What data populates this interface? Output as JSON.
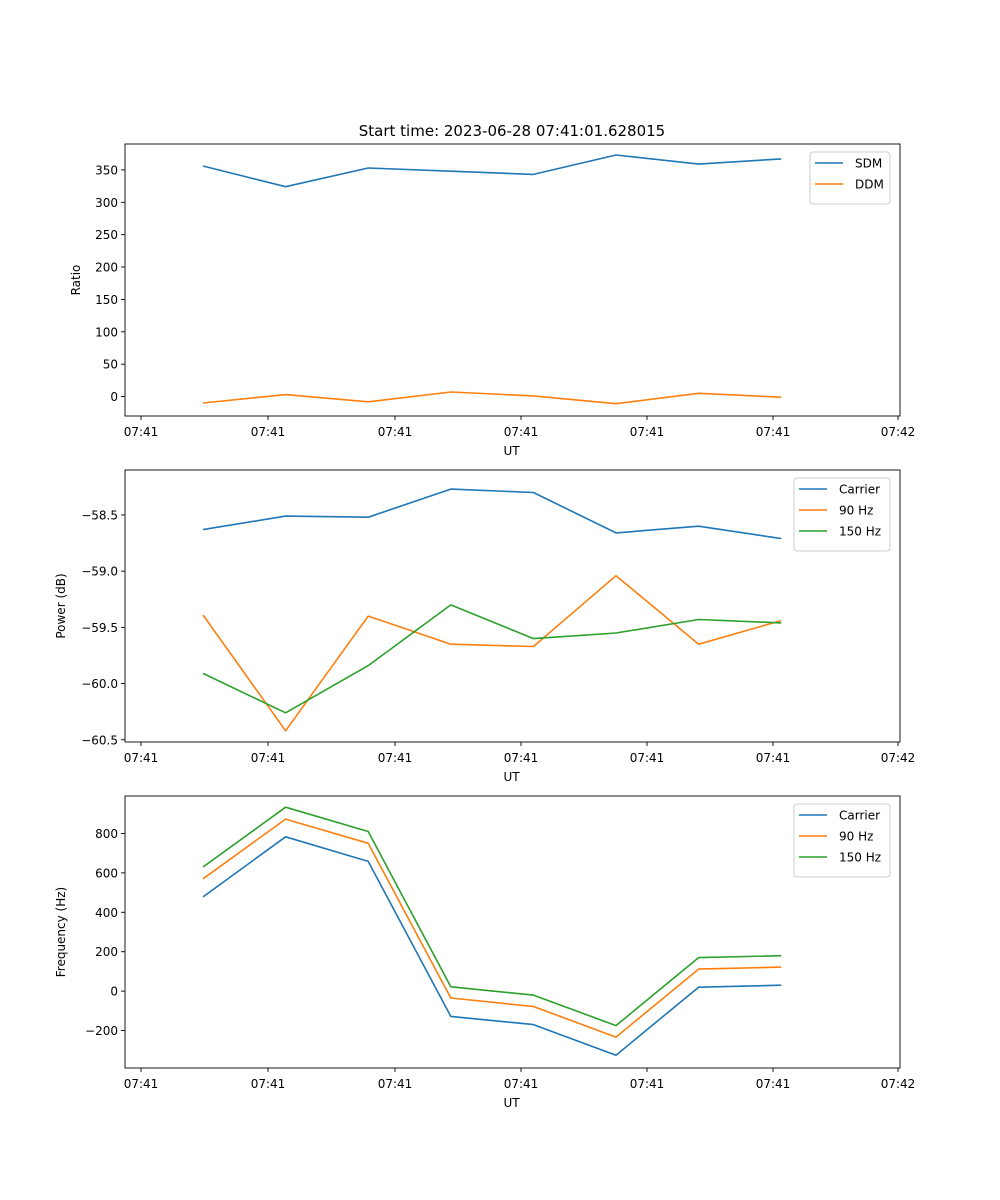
{
  "figure": {
    "title": "Start time: 2023-06-28 07:41:01.628015"
  },
  "chart_data": [
    {
      "type": "line",
      "xlabel": "UT",
      "ylabel": "Ratio",
      "x_tick_labels": [
        "07:41",
        "07:41",
        "07:41",
        "07:41",
        "07:41",
        "07:41",
        "07:42"
      ],
      "ylim": [
        -30,
        390
      ],
      "yticks": [
        0,
        50,
        100,
        150,
        200,
        250,
        300,
        350
      ],
      "legend_position": "top-right",
      "grid": false,
      "series": [
        {
          "name": "SDM",
          "color": "#1f77b4",
          "values": [
            356,
            324,
            353,
            348,
            343,
            373,
            359,
            367
          ]
        },
        {
          "name": "DDM",
          "color": "#ff7f0e",
          "values": [
            -10,
            3,
            -8,
            7,
            1,
            -11,
            5,
            -1
          ]
        }
      ]
    },
    {
      "type": "line",
      "xlabel": "UT",
      "ylabel": "Power (dB)",
      "x_tick_labels": [
        "07:41",
        "07:41",
        "07:41",
        "07:41",
        "07:41",
        "07:41",
        "07:42"
      ],
      "ylim": [
        -60.52,
        -58.1
      ],
      "yticks": [
        -58.5,
        -59.0,
        -59.5,
        -60.0,
        -60.5
      ],
      "ytick_labels": [
        "−58.5",
        "−59.0",
        "−59.5",
        "−60.0",
        "−60.5"
      ],
      "legend_position": "top-right",
      "grid": false,
      "series": [
        {
          "name": "Carrier",
          "color": "#1f77b4",
          "values": [
            -58.63,
            -58.51,
            -58.52,
            -58.27,
            -58.3,
            -58.66,
            -58.6,
            -58.71
          ]
        },
        {
          "name": "90 Hz",
          "color": "#ff7f0e",
          "values": [
            -59.39,
            -60.42,
            -59.4,
            -59.65,
            -59.67,
            -59.04,
            -59.65,
            -59.44
          ]
        },
        {
          "name": "150 Hz",
          "color": "#2ca02c",
          "values": [
            -59.91,
            -60.26,
            -59.84,
            -59.3,
            -59.6,
            -59.55,
            -59.43,
            -59.46
          ]
        }
      ]
    },
    {
      "type": "line",
      "xlabel": "UT",
      "ylabel": "Frequency (Hz)",
      "x_tick_labels": [
        "07:41",
        "07:41",
        "07:41",
        "07:41",
        "07:41",
        "07:41",
        "07:42"
      ],
      "ylim": [
        -390,
        990
      ],
      "yticks": [
        800,
        600,
        400,
        200,
        0,
        -200
      ],
      "ytick_labels": [
        "800",
        "600",
        "400",
        "200",
        "0",
        "−200"
      ],
      "legend_position": "top-right",
      "grid": false,
      "series": [
        {
          "name": "Carrier",
          "color": "#1f77b4",
          "values": [
            478,
            783,
            658,
            -128,
            -170,
            -325,
            20,
            30
          ]
        },
        {
          "name": "90 Hz",
          "color": "#ff7f0e",
          "values": [
            570,
            873,
            750,
            -35,
            -78,
            -233,
            112,
            122
          ]
        },
        {
          "name": "150 Hz",
          "color": "#2ca02c",
          "values": [
            630,
            933,
            810,
            22,
            -20,
            -175,
            170,
            180
          ]
        }
      ]
    }
  ]
}
